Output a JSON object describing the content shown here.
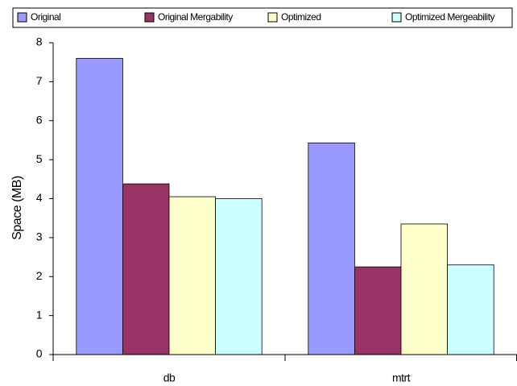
{
  "chart_data": {
    "type": "bar",
    "y_label": "Space (MB)",
    "categories": [
      "db",
      "mtrt"
    ],
    "series": [
      {
        "name": "Original",
        "color": "#9999ff",
        "values": [
          7.6,
          5.43
        ]
      },
      {
        "name": "Original Mergability",
        "color": "#993366",
        "values": [
          4.38,
          2.25
        ]
      },
      {
        "name": "Optimized",
        "color": "#ffffcc",
        "values": [
          4.05,
          3.35
        ]
      },
      {
        "name": "Optimized Mergeability",
        "color": "#ccffff",
        "values": [
          4.0,
          2.3
        ]
      }
    ],
    "ylim": [
      0,
      8
    ],
    "yticks": [
      0,
      1,
      2,
      3,
      4,
      5,
      6,
      7,
      8
    ],
    "grid": false,
    "legend": "top"
  }
}
